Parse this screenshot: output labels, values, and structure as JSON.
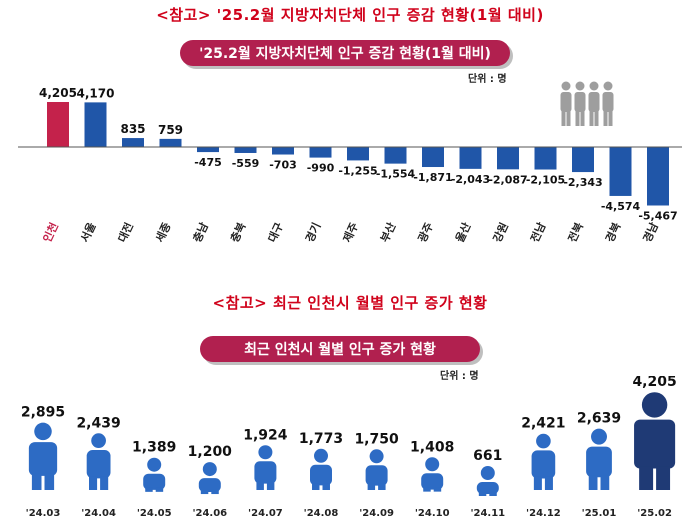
{
  "section1": {
    "heading": "<참고> '25.2월 지방자치단체 인구 증감 현황(1월 대비)",
    "pill_title": "'25.2월 지방자치단체 인구 증감 현황(1월 대비)",
    "unit": "단위 : 명"
  },
  "section2": {
    "heading": "<참고> 최근 인천시 월별 인구 증가 현황",
    "pill_title": "최근 인천시 월별 인구 증가 현황",
    "unit": "단위 : 명"
  },
  "colors": {
    "accent_red": "#d0021b",
    "highlight_bar": "#c4224b",
    "bar_blue": "#2056a8",
    "pill_bg": "#b1204f",
    "person_blue": "#2d6bc4",
    "person_dark": "#1f3a75",
    "people_icon": "#9e9e9e"
  },
  "chart_data": [
    {
      "type": "bar",
      "title": "'25.2월 지방자치단체 인구 증감 현황(1월 대비)",
      "xlabel": "",
      "ylabel": "단위 : 명",
      "categories": [
        "인천",
        "서울",
        "대전",
        "세종",
        "충남",
        "충북",
        "대구",
        "경기",
        "제주",
        "부산",
        "광주",
        "울산",
        "강원",
        "전남",
        "전북",
        "경북",
        "경남"
      ],
      "values": [
        4205,
        4170,
        835,
        759,
        -475,
        -559,
        -703,
        -990,
        -1255,
        -1554,
        -1871,
        -2043,
        -2087,
        -2105,
        -2343,
        -4574,
        -5467
      ],
      "value_labels": [
        "4,205",
        "4,170",
        "835",
        "759",
        "-475",
        "-559",
        "-703",
        "-990",
        "-1,255",
        "-1,554",
        "-1,871",
        "-2,043",
        "-2,087",
        "-2,105",
        "-2,343",
        "-4,574",
        "-5,467"
      ],
      "highlight": "인천",
      "ylim": [
        -5500,
        4300
      ]
    },
    {
      "type": "bar",
      "title": "최근 인천시 월별 인구 증가 현황",
      "xlabel": "",
      "ylabel": "단위 : 명",
      "categories": [
        "'24.03",
        "'24.04",
        "'24.05",
        "'24.06",
        "'24.07",
        "'24.08",
        "'24.09",
        "'24.10",
        "'24.11",
        "'24.12",
        "'25.01",
        "'25.02"
      ],
      "values": [
        2895,
        2439,
        1389,
        1200,
        1924,
        1773,
        1750,
        1408,
        661,
        2421,
        2639,
        4205
      ],
      "value_labels": [
        "2,895",
        "2,439",
        "1,389",
        "1,200",
        "1,924",
        "1,773",
        "1,750",
        "1,408",
        "661",
        "2,421",
        "2,639",
        "4,205"
      ],
      "highlight": "'25.02",
      "ylim": [
        0,
        4300
      ]
    }
  ]
}
